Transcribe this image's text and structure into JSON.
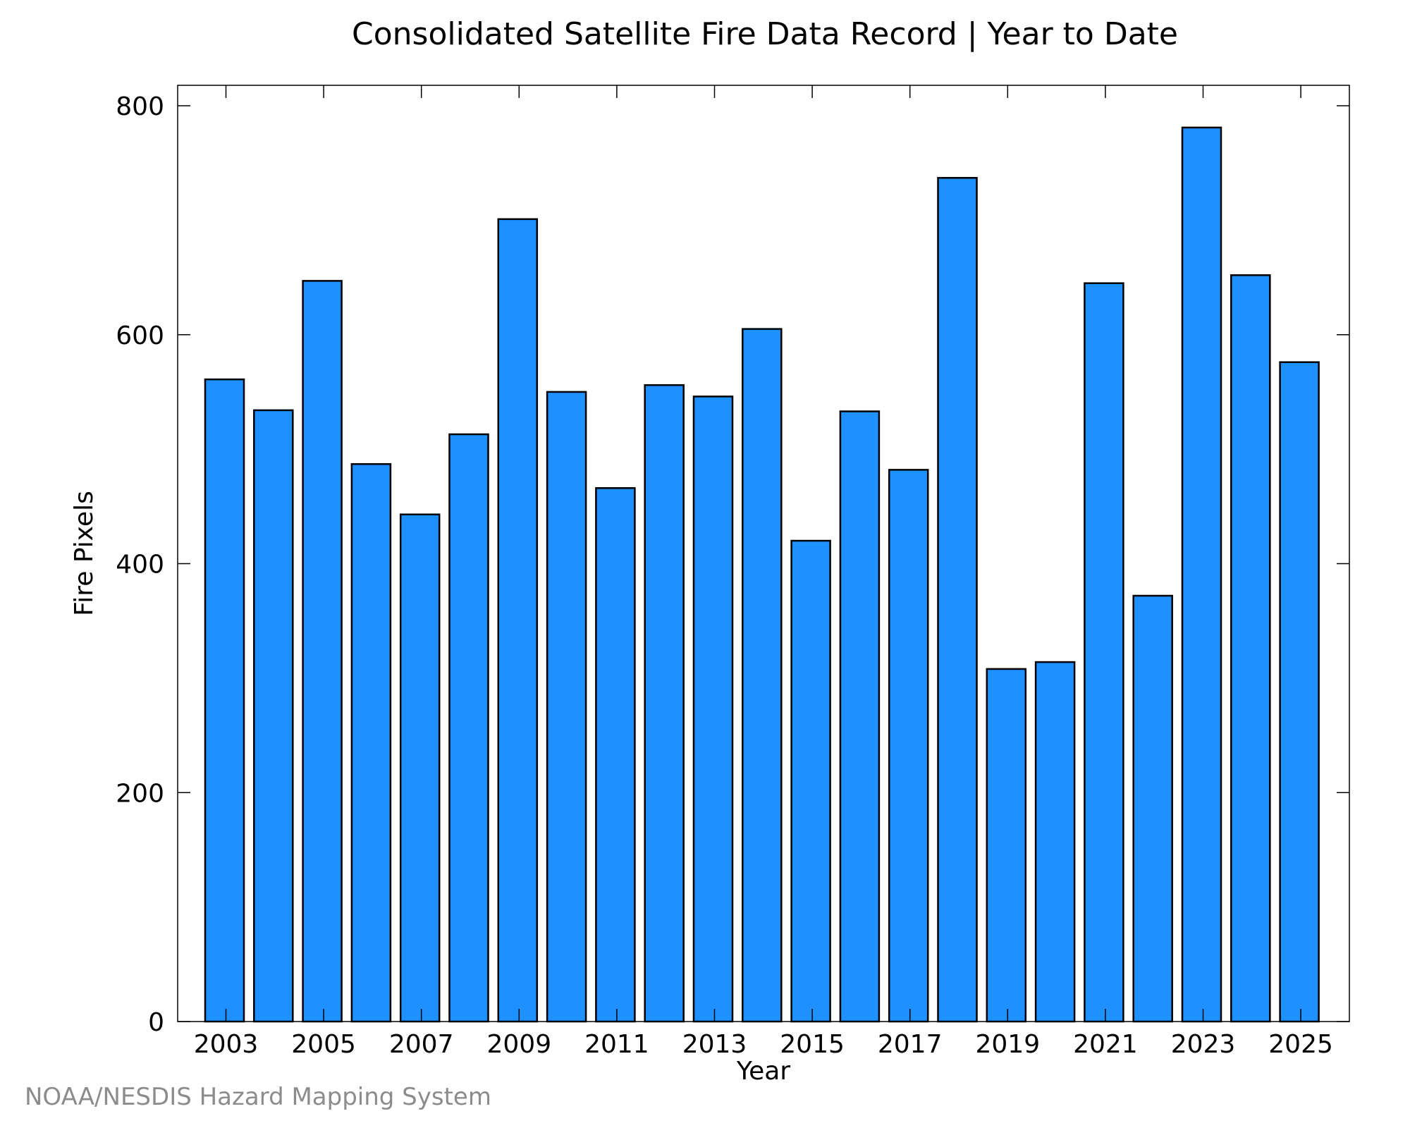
{
  "chart_data": {
    "type": "bar",
    "title": "Consolidated Satellite Fire Data Record | Year to Date",
    "xlabel": "Year",
    "ylabel": "Fire Pixels",
    "categories": [
      "2003",
      "2004",
      "2005",
      "2006",
      "2007",
      "2008",
      "2009",
      "2010",
      "2011",
      "2012",
      "2013",
      "2014",
      "2015",
      "2016",
      "2017",
      "2018",
      "2019",
      "2020",
      "2021",
      "2022",
      "2023",
      "2024",
      "2025"
    ],
    "values": [
      561,
      534,
      647,
      487,
      443,
      513,
      701,
      550,
      466,
      556,
      546,
      605,
      420,
      533,
      482,
      737,
      308,
      314,
      645,
      372,
      781,
      652,
      576
    ],
    "ylim": [
      0,
      820
    ],
    "yticks": [
      0,
      200,
      400,
      600,
      800
    ],
    "xtick_labels": [
      "2003",
      "2005",
      "2007",
      "2009",
      "2011",
      "2013",
      "2015",
      "2017",
      "2019",
      "2021",
      "2023",
      "2025"
    ],
    "bar_color": "#1e90ff",
    "edge_color": "#000000",
    "grid": false
  },
  "footer": {
    "credit": "NOAA/NESDIS Hazard Mapping System"
  }
}
